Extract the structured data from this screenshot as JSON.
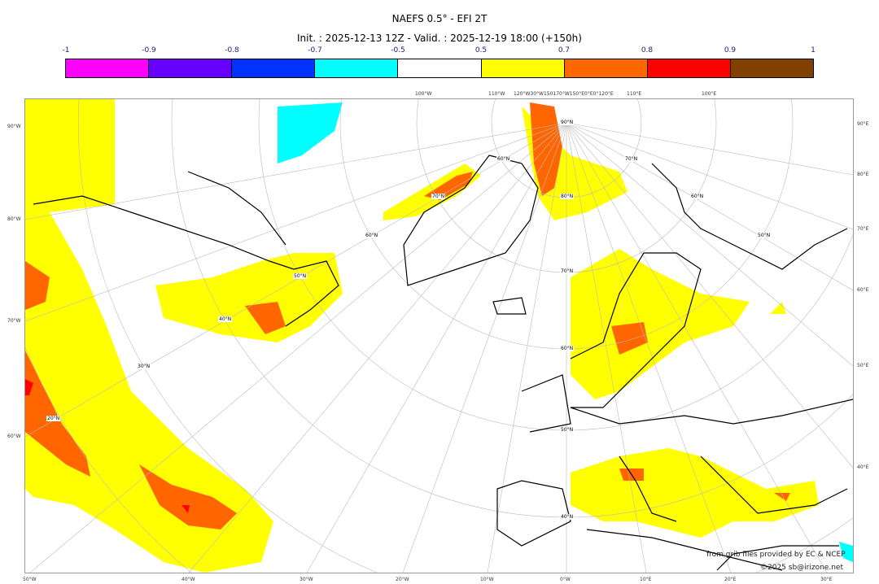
{
  "title": "NAEFS 0.5° - EFI 2T",
  "subtitle": "Init. : 2025-12-13 12Z - Valid. : 2025-12-19 18:00 (+150h)",
  "colorbar": {
    "ticks": [
      "-1",
      "-0.9",
      "-0.8",
      "-0.7",
      "-0.5",
      "0.5",
      "0.7",
      "0.8",
      "0.9",
      "1"
    ],
    "colors": [
      "#ff00ff",
      "#6600ff",
      "#0033ff",
      "#00ffff",
      "#ffffff",
      "#ffff00",
      "#ff6600",
      "#ff0000",
      "#804000"
    ]
  },
  "axes": {
    "left": [
      "90°W",
      "80°W",
      "70°W",
      "60°W"
    ],
    "right": [
      "90°E",
      "80°E",
      "70°E",
      "60°E",
      "50°E",
      "40°E"
    ],
    "bottom": [
      "50°W",
      "40°W",
      "30°W",
      "20°W",
      "10°W",
      "0°W",
      "10°E",
      "20°E",
      "30°E"
    ],
    "top": [
      "100°W",
      "110°W",
      "120°W30°W150170°W150°E0°E0°120°E",
      "110°E",
      "100°E"
    ]
  },
  "lat_labels": [
    "90°N",
    "80°N",
    "70°N",
    "60°N",
    "50°N",
    "40°N",
    "70°N",
    "60°N",
    "50°N",
    "40°N",
    "30°N",
    "20°N",
    "60°N",
    "70°N",
    "60°N",
    "50°N"
  ],
  "credits": {
    "source": "from grib files provided by EC & NCEP",
    "copyright": "©2025 sb@irizone.net"
  }
}
